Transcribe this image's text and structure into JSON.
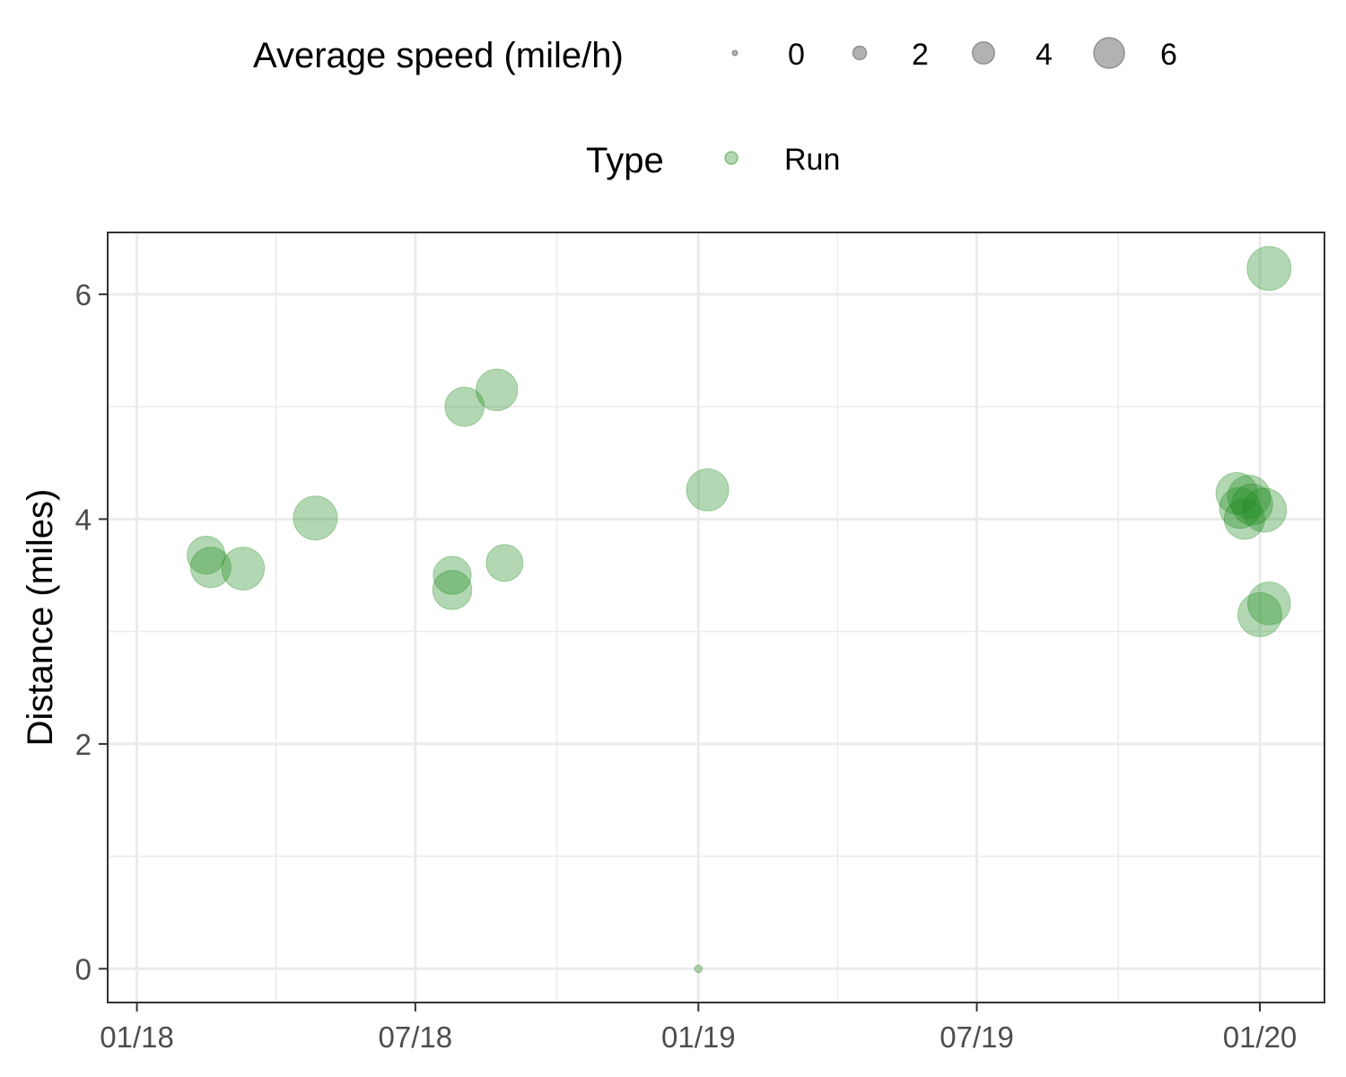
{
  "chart_data": {
    "type": "scatter",
    "title": "",
    "xlabel": "",
    "ylabel": "Distance (miles)",
    "x_ticks": [
      "01/18",
      "07/18",
      "01/19",
      "07/19",
      "01/20"
    ],
    "y_ticks": [
      "0",
      "2",
      "4",
      "6"
    ],
    "ylim": [
      -0.3,
      6.55
    ],
    "xlim": [
      "2017-12-13",
      "2020-02-12"
    ],
    "grid": true,
    "legend_position": "top",
    "point_color": "#228B22",
    "legends": {
      "size": {
        "title": "Average speed (mile/h)",
        "entries": [
          {
            "label": "0",
            "value": 0
          },
          {
            "label": "2",
            "value": 2
          },
          {
            "label": "4",
            "value": 4
          },
          {
            "label": "6",
            "value": 6
          }
        ]
      },
      "color": {
        "title": "Type",
        "entries": [
          {
            "label": "Run",
            "color": "#228B22"
          }
        ]
      }
    },
    "points": [
      {
        "date": "2018-02-15",
        "distance": 3.68,
        "speed": 5.2,
        "type": "Run"
      },
      {
        "date": "2018-02-18",
        "distance": 3.57,
        "speed": 5.6,
        "type": "Run"
      },
      {
        "date": "2018-03-11",
        "distance": 3.56,
        "speed": 6.0,
        "type": "Run"
      },
      {
        "date": "2018-04-27",
        "distance": 4.01,
        "speed": 6.2,
        "type": "Run"
      },
      {
        "date": "2018-07-25",
        "distance": 3.5,
        "speed": 5.2,
        "type": "Run"
      },
      {
        "date": "2018-07-25",
        "distance": 3.37,
        "speed": 5.4,
        "type": "Run"
      },
      {
        "date": "2018-08-02",
        "distance": 5.0,
        "speed": 5.4,
        "type": "Run"
      },
      {
        "date": "2018-08-23",
        "distance": 5.15,
        "speed": 5.8,
        "type": "Run"
      },
      {
        "date": "2018-08-28",
        "distance": 3.61,
        "speed": 5.0,
        "type": "Run"
      },
      {
        "date": "2019-01-01",
        "distance": 0.0,
        "speed": 0.1,
        "type": "Run"
      },
      {
        "date": "2019-01-07",
        "distance": 4.26,
        "speed": 5.9,
        "type": "Run"
      },
      {
        "date": "2019-12-17",
        "distance": 4.23,
        "speed": 5.8,
        "type": "Run"
      },
      {
        "date": "2019-12-19",
        "distance": 4.1,
        "speed": 5.7,
        "type": "Run"
      },
      {
        "date": "2019-12-22",
        "distance": 4.0,
        "speed": 5.6,
        "type": "Run"
      },
      {
        "date": "2019-12-25",
        "distance": 4.2,
        "speed": 6.0,
        "type": "Run"
      },
      {
        "date": "2019-12-27",
        "distance": 4.13,
        "speed": 5.7,
        "type": "Run"
      },
      {
        "date": "2020-01-01",
        "distance": 3.15,
        "speed": 6.2,
        "type": "Run"
      },
      {
        "date": "2020-01-04",
        "distance": 4.08,
        "speed": 6.2,
        "type": "Run"
      },
      {
        "date": "2020-01-07",
        "distance": 3.25,
        "speed": 6.0,
        "type": "Run"
      },
      {
        "date": "2020-01-07",
        "distance": 6.23,
        "speed": 6.2,
        "type": "Run"
      }
    ]
  }
}
